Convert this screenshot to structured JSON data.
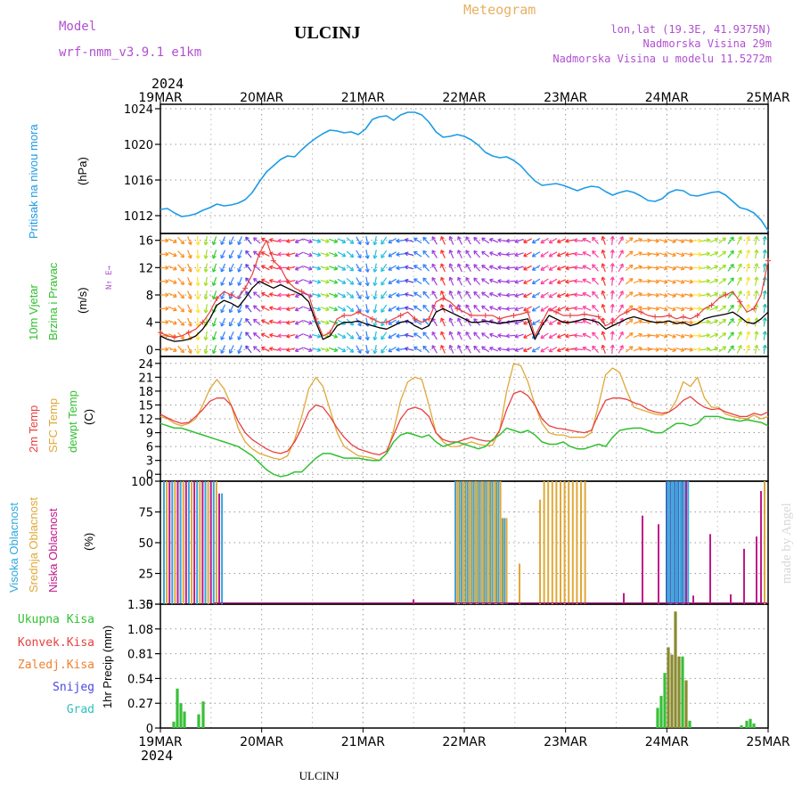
{
  "header": {
    "model_label": "Model",
    "model_name": "wrf-nmm_v3.9.1 e1km",
    "station": "ULCINJ",
    "title": "Meteogram",
    "coords": "lon,lat (19.3E, 41.9375N)",
    "elevation": "Nadmorska Visina 29m",
    "model_elevation": "Nadmorska Visina u modelu 11.5272m",
    "year_top": "2024",
    "year_bottom": "2024",
    "footer_station": "ULCINJ",
    "watermark": "made by Angel"
  },
  "colors": {
    "pressure": "#1e9be6",
    "temp2m": "#e84040",
    "sfc": "#e0a838",
    "dewpt": "#30c030",
    "high_cloud": "#2ea8e0",
    "mid_cloud": "#e0a838",
    "low_cloud": "#c0188c",
    "rain_total": "#38c038",
    "rain_conv": "#e84040",
    "rain_frozen": "#f08030",
    "snow": "#4848e0",
    "hail": "#30c0c0",
    "label_purple": "#b050d0",
    "label_orange": "#e8b060"
  },
  "panel_labels": {
    "pressure": [
      "Pritisak na nivou mora"
    ],
    "pressure_unit": "(hPa)",
    "wind": [
      "10m Vjetar",
      "Brzina i Pravac"
    ],
    "wind_unit": "(m/s)",
    "wind_compass": "N↑ E→",
    "temp": [
      "2m Temp",
      "SFC Temp",
      "dewpt Temp"
    ],
    "temp_unit": "(C)",
    "cloud": [
      "Visoka Oblacnost",
      "Srednja Oblacnost",
      "Niska Oblacnost"
    ],
    "cloud_unit": "(%)",
    "precip": [
      "Ukupna Kisa",
      "Konvek.Kisa",
      "Zaledj.Kisa",
      "Snijeg",
      "Grad"
    ],
    "precip_unit": "1hr Precip (mm)"
  },
  "chart_data": {
    "type": "line",
    "x_labels": [
      "19MAR",
      "20MAR",
      "21MAR",
      "22MAR",
      "23MAR",
      "24MAR",
      "25MAR"
    ],
    "pressure": {
      "ylabel": "(hPa)",
      "ylim": [
        1010,
        1024.5
      ],
      "yticks": [
        1012,
        1016,
        1020,
        1024
      ],
      "values": [
        1012.7,
        1012.8,
        1012.3,
        1011.9,
        1012.0,
        1012.2,
        1012.6,
        1012.9,
        1013.3,
        1013.1,
        1013.2,
        1013.4,
        1013.8,
        1014.6,
        1015.8,
        1016.9,
        1017.6,
        1018.3,
        1018.7,
        1018.6,
        1019.4,
        1020.1,
        1020.7,
        1021.2,
        1021.6,
        1021.5,
        1021.3,
        1021.4,
        1021.1,
        1021.7,
        1022.8,
        1023.1,
        1023.2,
        1022.7,
        1023.3,
        1023.6,
        1023.6,
        1023.3,
        1022.5,
        1021.4,
        1020.8,
        1020.9,
        1021.1,
        1020.9,
        1020.5,
        1019.9,
        1019.1,
        1018.7,
        1018.5,
        1018.6,
        1018.2,
        1017.6,
        1016.7,
        1015.9,
        1015.4,
        1015.5,
        1015.6,
        1015.4,
        1015.1,
        1014.8,
        1015.1,
        1015.3,
        1015.2,
        1014.7,
        1014.3,
        1014.6,
        1014.8,
        1014.6,
        1014.2,
        1013.7,
        1013.6,
        1013.9,
        1014.6,
        1014.9,
        1014.8,
        1014.3,
        1014.2,
        1014.4,
        1014.6,
        1014.7,
        1014.3,
        1013.6,
        1012.9,
        1012.7,
        1012.3,
        1011.5,
        1010.3
      ]
    },
    "wind": {
      "ylabel": "(m/s)",
      "ylim": [
        -1,
        17
      ],
      "yticks": [
        0,
        4,
        8,
        12,
        16
      ],
      "speed": [
        2.0,
        1.5,
        1.2,
        1.3,
        1.5,
        2.0,
        3.0,
        4.5,
        6.5,
        7.2,
        6.8,
        6.2,
        7.5,
        9.0,
        10.0,
        9.5,
        9.0,
        9.5,
        9.0,
        8.5,
        8.0,
        7.0,
        4.0,
        1.5,
        2.0,
        3.5,
        4.0,
        4.0,
        4.2,
        3.8,
        3.5,
        3.2,
        3.0,
        3.5,
        4.0,
        4.2,
        3.5,
        3.0,
        3.5,
        5.5,
        6.0,
        5.5,
        5.0,
        4.5,
        4.0,
        4.0,
        4.2,
        4.0,
        3.8,
        4.0,
        4.2,
        4.3,
        4.5,
        1.5,
        3.5,
        5.0,
        4.5,
        4.0,
        4.0,
        4.2,
        4.5,
        4.3,
        4.0,
        3.0,
        3.5,
        4.0,
        4.5,
        4.8,
        4.5,
        4.2,
        4.0,
        4.0,
        4.2,
        3.8,
        4.0,
        3.5,
        3.8,
        4.5,
        4.8,
        5.0,
        5.2,
        5.5,
        4.8,
        4.0,
        3.8,
        4.5,
        5.5
      ],
      "gust": [
        2.5,
        2.0,
        1.8,
        2.0,
        2.5,
        3.0,
        4.0,
        5.5,
        7.5,
        8.5,
        8.0,
        7.5,
        9.0,
        11.0,
        14.0,
        16.0,
        13.0,
        12.0,
        10.0,
        9.0,
        8.5,
        8.0,
        4.5,
        2.0,
        2.5,
        4.5,
        5.0,
        5.0,
        5.5,
        5.0,
        4.5,
        4.0,
        4.0,
        4.5,
        5.0,
        5.5,
        4.5,
        4.0,
        4.5,
        7.0,
        7.5,
        7.0,
        6.0,
        5.5,
        5.0,
        5.0,
        5.0,
        5.0,
        4.5,
        4.8,
        5.0,
        5.2,
        5.5,
        2.0,
        4.0,
        6.0,
        5.5,
        5.0,
        5.0,
        5.0,
        5.2,
        5.0,
        4.8,
        3.5,
        4.0,
        5.0,
        5.5,
        6.0,
        5.5,
        5.0,
        4.8,
        4.8,
        5.0,
        4.5,
        4.8,
        4.5,
        5.0,
        6.0,
        6.5,
        7.5,
        8.0,
        8.5,
        7.0,
        5.5,
        6.0,
        8.0,
        13.0
      ]
    },
    "temperature": {
      "ylabel": "(C)",
      "ylim": [
        -1.5,
        25.5
      ],
      "yticks": [
        0,
        3,
        6,
        9,
        12,
        15,
        18,
        21,
        24
      ],
      "t2m": [
        13.0,
        12.2,
        11.5,
        11.0,
        11.2,
        12.5,
        14.0,
        15.8,
        16.5,
        16.5,
        15.0,
        11.5,
        9.0,
        7.5,
        6.5,
        5.5,
        4.8,
        4.5,
        5.0,
        7.0,
        10.0,
        13.5,
        15.0,
        14.5,
        12.5,
        10.0,
        8.0,
        6.5,
        5.5,
        5.0,
        4.5,
        4.2,
        5.0,
        8.5,
        12.0,
        14.0,
        14.5,
        14.0,
        12.5,
        9.0,
        7.5,
        7.0,
        7.0,
        7.5,
        8.0,
        7.5,
        7.2,
        7.2,
        9.5,
        14.0,
        17.5,
        18.0,
        17.0,
        15.0,
        12.0,
        10.5,
        10.0,
        9.8,
        9.5,
        9.2,
        9.0,
        9.5,
        13.0,
        16.0,
        16.5,
        16.5,
        16.2,
        15.5,
        15.0,
        14.0,
        13.5,
        13.2,
        13.5,
        14.5,
        16.0,
        16.8,
        15.5,
        14.5,
        14.0,
        14.2,
        13.5,
        13.0,
        12.5,
        12.5,
        13.2,
        12.8,
        13.5
      ],
      "sfc": [
        12.5,
        12.0,
        11.0,
        10.5,
        11.0,
        12.0,
        15.0,
        18.5,
        20.5,
        18.5,
        15.0,
        10.0,
        7.0,
        5.5,
        4.5,
        4.0,
        3.5,
        3.2,
        4.0,
        7.5,
        12.5,
        18.5,
        21.0,
        19.0,
        14.0,
        9.0,
        6.0,
        5.0,
        4.0,
        3.8,
        3.5,
        3.0,
        4.5,
        9.5,
        16.0,
        20.0,
        21.0,
        20.5,
        15.0,
        9.0,
        7.0,
        6.0,
        6.0,
        6.5,
        7.0,
        6.5,
        6.2,
        6.3,
        9.5,
        18.0,
        24.0,
        23.5,
        20.0,
        15.0,
        11.0,
        9.0,
        8.5,
        8.5,
        8.0,
        8.0,
        8.0,
        9.0,
        15.0,
        21.5,
        23.0,
        22.0,
        18.0,
        14.5,
        14.0,
        13.5,
        13.0,
        12.8,
        13.5,
        16.0,
        20.0,
        19.0,
        21.0,
        16.5,
        14.5,
        14.5,
        13.0,
        12.5,
        12.2,
        12.0,
        12.8,
        12.0,
        12.5
      ],
      "dewpt": [
        11.0,
        10.5,
        10.0,
        10.0,
        9.5,
        9.0,
        8.5,
        8.0,
        7.5,
        7.0,
        6.5,
        6.0,
        5.0,
        4.0,
        2.5,
        1.0,
        0.0,
        -0.5,
        -0.2,
        0.5,
        0.5,
        2.0,
        3.5,
        4.5,
        4.5,
        4.0,
        3.5,
        3.5,
        3.5,
        3.2,
        3.0,
        3.0,
        4.5,
        7.0,
        8.5,
        9.0,
        8.5,
        8.0,
        8.5,
        7.0,
        6.0,
        6.5,
        7.0,
        6.5,
        6.0,
        5.5,
        6.0,
        7.5,
        8.5,
        10.0,
        9.5,
        9.0,
        9.5,
        8.5,
        7.0,
        6.5,
        6.5,
        7.0,
        6.0,
        5.5,
        5.5,
        6.0,
        6.5,
        6.0,
        8.0,
        9.5,
        9.8,
        10.0,
        10.0,
        9.5,
        9.0,
        9.0,
        10.0,
        11.0,
        11.0,
        10.5,
        11.0,
        12.5,
        12.5,
        12.5,
        12.0,
        11.8,
        11.5,
        11.8,
        11.5,
        11.2,
        10.5
      ]
    },
    "clouds": {
      "ylabel": "(%)",
      "ylim": [
        0,
        100
      ],
      "yticks": [
        0,
        25,
        50,
        75,
        100
      ]
    },
    "precipitation": {
      "ylabel": "1hr Precip (mm)",
      "ylim": [
        0,
        1.35
      ],
      "yticks": [
        0,
        0.27,
        0.54,
        0.81,
        1.08,
        1.35
      ],
      "ytick_labels": [
        "0",
        "0.27",
        "0.54",
        "0.81",
        "1.08",
        "1.35"
      ]
    }
  }
}
